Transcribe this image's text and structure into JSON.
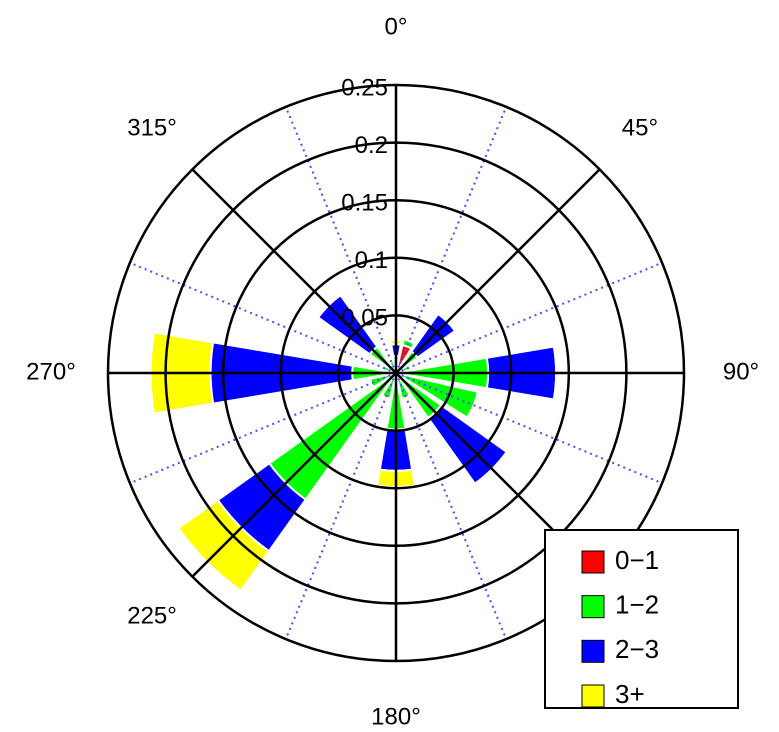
{
  "chart_data": {
    "type": "polar-bar",
    "theta": [
      0,
      22.5,
      45,
      67.5,
      90,
      112.5,
      135,
      157.5,
      180,
      202.5,
      225,
      247.5,
      270,
      292.5,
      315,
      337.5
    ],
    "series": [
      {
        "name": "0−1",
        "color": "#ff0000",
        "values": [
          0.003,
          0.025,
          0.003,
          0.003,
          0.005,
          0.003,
          0.003,
          0.003,
          0.004,
          0.003,
          0.005,
          0.003,
          0.003,
          0.003,
          0.003,
          0.003
        ]
      },
      {
        "name": "1−2",
        "color": "#00ff00",
        "values": [
          0.012,
          0.005,
          0.02,
          0.01,
          0.075,
          0.07,
          0.045,
          0.02,
          0.045,
          0.02,
          0.13,
          0.02,
          0.035,
          0.01,
          0.025,
          0.008
        ]
      },
      {
        "name": "2−3",
        "color": "#0000ff",
        "values": [
          0.01,
          0,
          0.04,
          0,
          0.059,
          0,
          0.07,
          0,
          0.036,
          0,
          0.055,
          0,
          0.123,
          0,
          0.055,
          0
        ]
      },
      {
        "name": "3+",
        "color": "#ffff00",
        "values": [
          0.004,
          0,
          0,
          0,
          0,
          0,
          0,
          0,
          0.014,
          0,
          0.042,
          0,
          0.052,
          0,
          0,
          0
        ]
      }
    ],
    "ylim": [
      0,
      0.25
    ],
    "yticks": [
      0.05,
      0.1,
      0.15,
      0.2,
      0.25
    ],
    "angle_ticks": [
      {
        "value": 0,
        "label": "0°"
      },
      {
        "value": 45,
        "label": "45°"
      },
      {
        "value": 90,
        "label": "90°"
      },
      {
        "value": 135,
        "label": ""
      },
      {
        "value": 180,
        "label": "180°"
      },
      {
        "value": 225,
        "label": "225°"
      },
      {
        "value": 270,
        "label": "270°"
      },
      {
        "value": 315,
        "label": "315°"
      }
    ],
    "grid": true,
    "legend": "lower-right"
  }
}
